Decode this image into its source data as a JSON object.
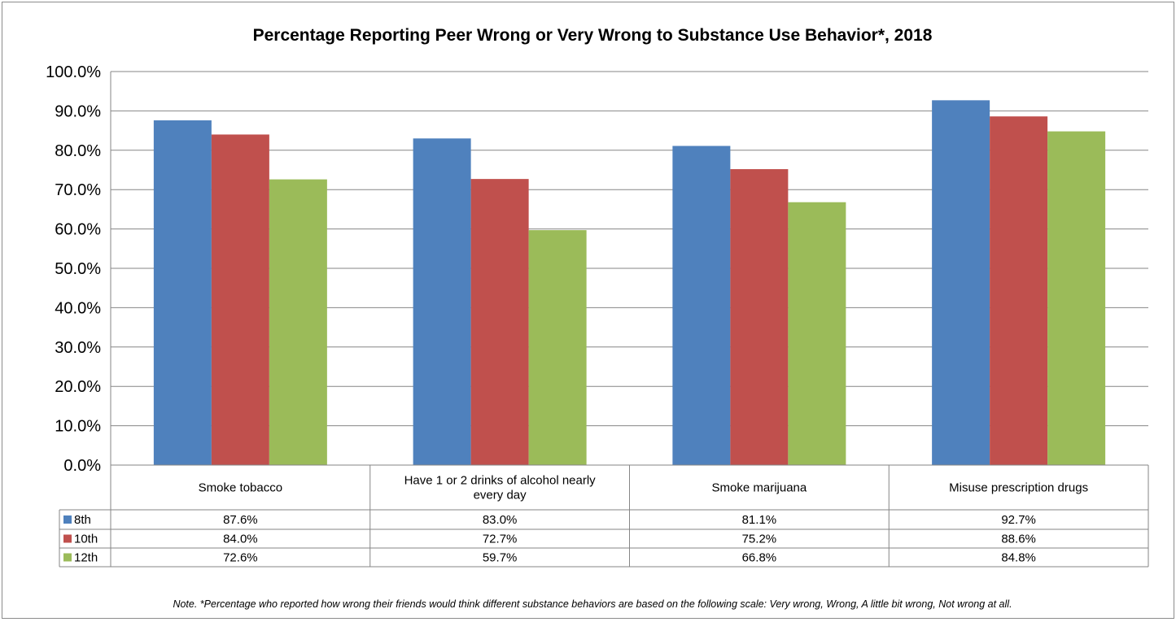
{
  "chart_data": {
    "type": "bar",
    "title": "Percentage Reporting Peer Wrong or Very Wrong to Substance Use Behavior*, 2018",
    "categories": [
      "Smoke tobacco",
      "Have 1 or 2 drinks of alcohol nearly every day",
      "Smoke marijuana",
      "Misuse prescription drugs"
    ],
    "category_lines": [
      [
        "Smoke tobacco"
      ],
      [
        "Have 1 or 2 drinks of alcohol nearly",
        "every day"
      ],
      [
        "Smoke marijuana"
      ],
      [
        "Misuse prescription drugs"
      ]
    ],
    "series": [
      {
        "name": "8th",
        "color": "#4f81bd",
        "values": [
          87.6,
          83.0,
          81.1,
          92.7
        ],
        "labels": [
          "87.6%",
          "83.0%",
          "81.1%",
          "92.7%"
        ]
      },
      {
        "name": "10th",
        "color": "#c0504d",
        "values": [
          84.0,
          72.7,
          75.2,
          88.6
        ],
        "labels": [
          "84.0%",
          "72.7%",
          "75.2%",
          "88.6%"
        ]
      },
      {
        "name": "12th",
        "color": "#9bbb59",
        "values": [
          72.6,
          59.7,
          66.8,
          84.8
        ],
        "labels": [
          "72.6%",
          "59.7%",
          "66.8%",
          "84.8%"
        ]
      }
    ],
    "ylim": [
      0,
      100
    ],
    "yticks": [
      "0.0%",
      "10.0%",
      "20.0%",
      "30.0%",
      "40.0%",
      "50.0%",
      "60.0%",
      "70.0%",
      "80.0%",
      "90.0%",
      "100.0%"
    ],
    "grid": true,
    "legend": "data-table-left",
    "note": "Note. *Percentage who reported how wrong their friends would think different substance behaviors are based on the following scale: Very wrong, Wrong, A little bit wrong, Not wrong at all."
  }
}
